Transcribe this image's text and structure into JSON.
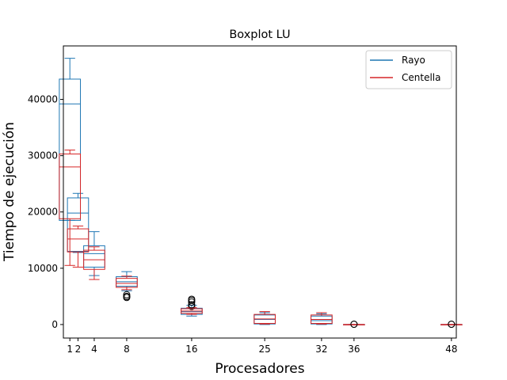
{
  "chart_data": {
    "type": "boxplot",
    "title": "Boxplot LU",
    "xlabel": "Procesadores",
    "ylabel": "Tiempo de ejecución",
    "x_ticks": [
      1,
      2,
      4,
      8,
      16,
      25,
      32,
      36,
      48
    ],
    "y_ticks": [
      0,
      10000,
      20000,
      30000,
      40000
    ],
    "xlim": [
      0.2,
      48.6
    ],
    "ylim": [
      -2400,
      49500
    ],
    "legend_position": "upper right",
    "grid": false,
    "series": [
      {
        "name": "Rayo",
        "color": "#1f77b4",
        "boxes": [
          {
            "x": 1,
            "whislo": 18500,
            "q1": 18500,
            "med": 39200,
            "q3": 43600,
            "whishi": 47300,
            "fliers": []
          },
          {
            "x": 2,
            "whislo": 12800,
            "q1": 13000,
            "med": 19800,
            "q3": 22500,
            "whishi": 23300,
            "fliers": []
          },
          {
            "x": 4,
            "whislo": 8700,
            "q1": 10200,
            "med": 12600,
            "q3": 14000,
            "whishi": 16500,
            "fliers": []
          },
          {
            "x": 8,
            "whislo": 6000,
            "q1": 6800,
            "med": 7600,
            "q3": 8500,
            "whishi": 9400,
            "fliers": [
              5000,
              4800,
              5300
            ]
          },
          {
            "x": 16,
            "whislo": 1500,
            "q1": 1800,
            "med": 2300,
            "q3": 2900,
            "whishi": 3400,
            "fliers": [
              4500,
              4000,
              3200
            ]
          },
          {
            "x": 25,
            "whislo": 0,
            "q1": 100,
            "med": 900,
            "q3": 1700,
            "whishi": 2100,
            "fliers": []
          },
          {
            "x": 32,
            "whislo": 0,
            "q1": 100,
            "med": 700,
            "q3": 1500,
            "whishi": 1900,
            "fliers": []
          },
          {
            "x": 36,
            "whislo": 0,
            "q1": 0,
            "med": 0,
            "q3": 0,
            "whishi": 0,
            "fliers": [
              50
            ]
          },
          {
            "x": 48,
            "whislo": 0,
            "q1": 0,
            "med": 0,
            "q3": 0,
            "whishi": 0,
            "fliers": [
              50
            ]
          }
        ]
      },
      {
        "name": "Centella",
        "color": "#d62728",
        "boxes": [
          {
            "x": 1,
            "whislo": 10500,
            "q1": 18800,
            "med": 28000,
            "q3": 30300,
            "whishi": 31000,
            "fliers": []
          },
          {
            "x": 2,
            "whislo": 10200,
            "q1": 12900,
            "med": 15200,
            "q3": 17000,
            "whishi": 17500,
            "fliers": []
          },
          {
            "x": 4,
            "whislo": 8000,
            "q1": 9800,
            "med": 11500,
            "q3": 13200,
            "whishi": 13800,
            "fliers": []
          },
          {
            "x": 8,
            "whislo": 6200,
            "q1": 6600,
            "med": 7300,
            "q3": 8200,
            "whishi": 8600,
            "fliers": [
              5000
            ]
          },
          {
            "x": 16,
            "whislo": 1800,
            "q1": 2000,
            "med": 2400,
            "q3": 2800,
            "whishi": 3000,
            "fliers": [
              4300,
              3500
            ]
          },
          {
            "x": 25,
            "whislo": 100,
            "q1": 200,
            "med": 1000,
            "q3": 1800,
            "whishi": 2300,
            "fliers": []
          },
          {
            "x": 32,
            "whislo": 100,
            "q1": 200,
            "med": 900,
            "q3": 1700,
            "whishi": 2100,
            "fliers": []
          },
          {
            "x": 36,
            "whislo": 0,
            "q1": 0,
            "med": 0,
            "q3": 0,
            "whishi": 0,
            "fliers": [
              60
            ]
          },
          {
            "x": 48,
            "whislo": 0,
            "q1": 0,
            "med": 0,
            "q3": 0,
            "whishi": 0,
            "fliers": [
              60
            ]
          }
        ]
      }
    ]
  }
}
